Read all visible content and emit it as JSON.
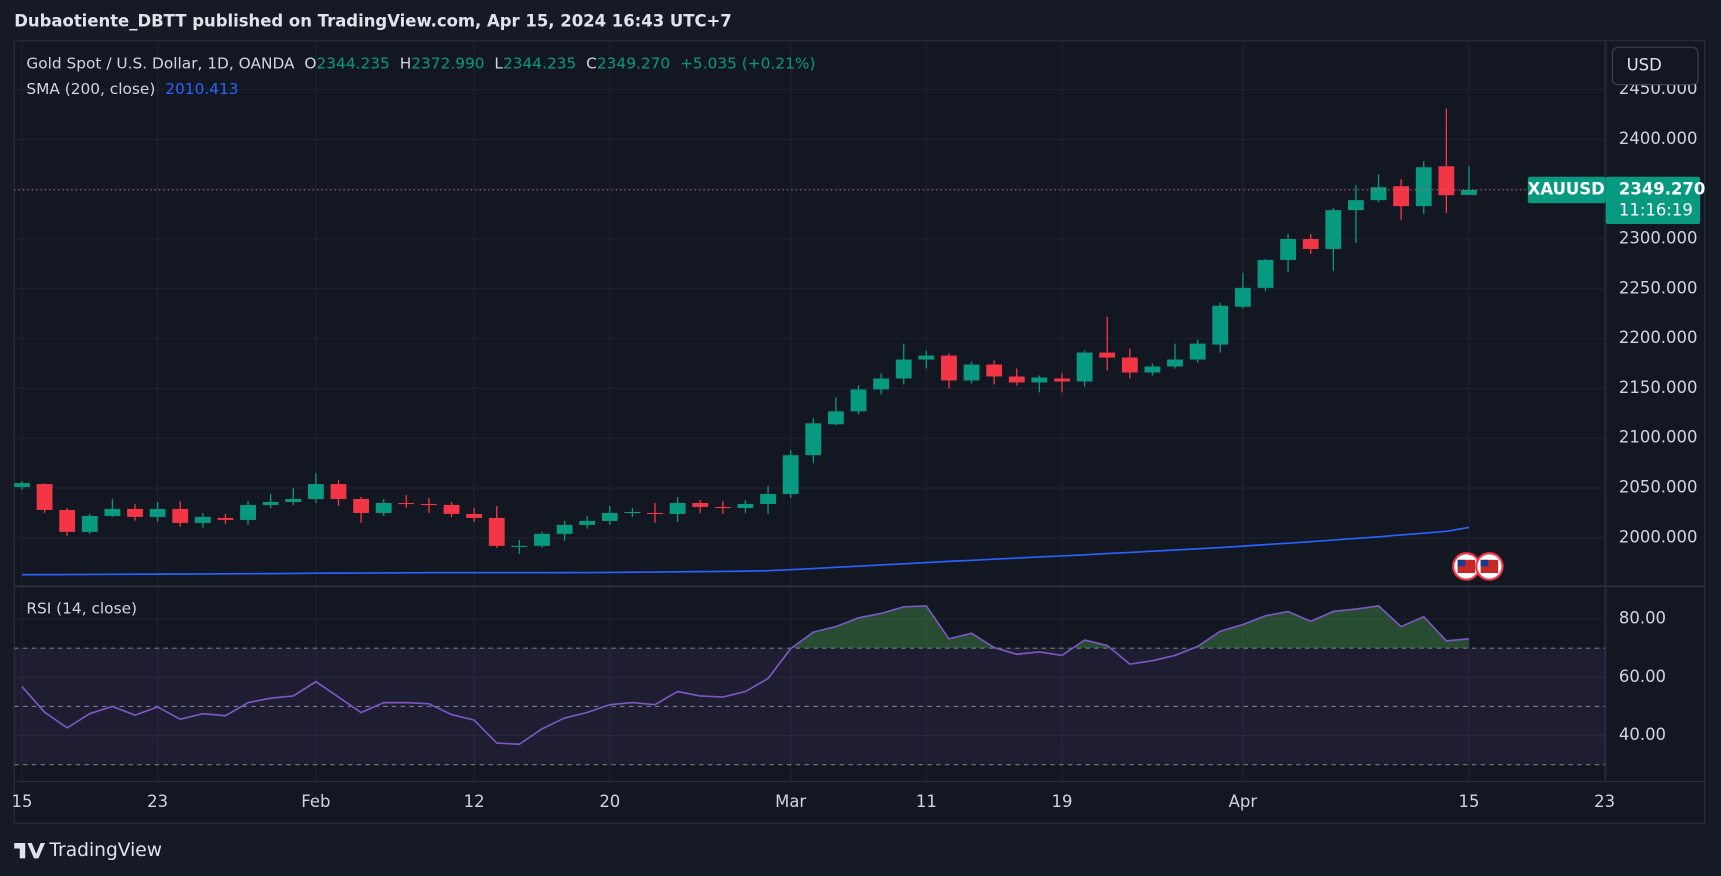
{
  "header": {
    "published": "Dubaotiente_DBTT published on TradingView.com, Apr 15, 2024 16:43 UTC+7"
  },
  "chart_data": [
    {
      "type": "candlestick",
      "title": "Gold Spot / U.S. Dollar, 1D, OANDA",
      "ohlc_legend": [
        {
          "label": "O",
          "value": "2344.235"
        },
        {
          "label": "H",
          "value": "2372.990"
        },
        {
          "label": "L",
          "value": "2344.235"
        },
        {
          "label": "C",
          "value": "2349.270"
        }
      ],
      "change": "+5.035 (+0.21%)",
      "up_color": "#089981",
      "down_color": "#f23645",
      "open": [
        2051,
        2054,
        2028,
        2006,
        2022,
        2029,
        2021,
        2029,
        2015,
        2020,
        2018,
        2033,
        2036,
        2039,
        2054,
        2039,
        2025,
        2035,
        2034,
        2033,
        2024,
        2020,
        1992,
        1992,
        2004,
        2013,
        2017,
        2025,
        2025,
        2024,
        2035,
        2031,
        2030,
        2034,
        2044,
        2083,
        2114,
        2127,
        2149,
        2160,
        2179,
        2183,
        2158,
        2174,
        2162,
        2156,
        2160,
        2157,
        2186,
        2181,
        2166,
        2172,
        2179,
        2194,
        2232,
        2251,
        2279,
        2300,
        2290,
        2329,
        2339,
        2353,
        2333,
        2373,
        2344.235
      ],
      "high": [
        2057,
        2055,
        2030,
        2024,
        2039,
        2034,
        2036,
        2037,
        2025,
        2024,
        2037,
        2044,
        2050,
        2065,
        2058,
        2041,
        2039,
        2043,
        2040,
        2036,
        2030,
        2032,
        1998,
        2006,
        2017,
        2022,
        2032,
        2030,
        2035,
        2041,
        2038,
        2037,
        2038,
        2052,
        2088,
        2120,
        2141,
        2153,
        2165,
        2195,
        2188,
        2185,
        2177,
        2178,
        2170,
        2163,
        2165,
        2188,
        2222,
        2190,
        2175,
        2195,
        2199,
        2236,
        2266,
        2280,
        2305,
        2305,
        2331,
        2354,
        2365,
        2360,
        2378,
        2431,
        2372.99
      ],
      "low": [
        2048,
        2025,
        2002,
        2004,
        2021,
        2017,
        2016,
        2011,
        2010,
        2014,
        2013,
        2030,
        2033,
        2035,
        2032,
        2015,
        2022,
        2030,
        2025,
        2021,
        2016,
        1990,
        1984,
        1990,
        1997,
        2009,
        2013,
        2021,
        2015,
        2016,
        2025,
        2024,
        2025,
        2024,
        2040,
        2075,
        2113,
        2124,
        2144,
        2154,
        2170,
        2150,
        2155,
        2154,
        2153,
        2146,
        2146,
        2152,
        2168,
        2160,
        2163,
        2170,
        2176,
        2186,
        2230,
        2248,
        2267,
        2285,
        2268,
        2296,
        2337,
        2319,
        2325,
        2326,
        2344.235
      ],
      "close": [
        2055,
        2028,
        2006,
        2022,
        2029,
        2021,
        2029,
        2015,
        2021,
        2018,
        2033,
        2036,
        2039,
        2054,
        2039,
        2025,
        2035,
        2034,
        2033,
        2024,
        2020,
        1992,
        1992,
        2004,
        2013,
        2017,
        2025,
        2026,
        2024,
        2035,
        2031,
        2030,
        2034,
        2044,
        2083,
        2115,
        2127,
        2149,
        2160,
        2179,
        2183,
        2158,
        2174,
        2162,
        2156,
        2161,
        2157,
        2186,
        2181,
        2166,
        2172,
        2179,
        2195,
        2233,
        2251,
        2279,
        2300,
        2290,
        2329,
        2339,
        2352,
        2333,
        2372,
        2344,
        2349.27
      ],
      "sma": {
        "name": "SMA (200, close)",
        "color": "#2962ff",
        "values": [
          1963.0,
          1963.1,
          1963.2,
          1963.3,
          1963.4,
          1963.5,
          1963.6,
          1963.7,
          1963.8,
          1963.9,
          1964.0,
          1964.1,
          1964.3,
          1964.5,
          1964.6,
          1964.7,
          1964.8,
          1964.9,
          1965.0,
          1965.0,
          1965.0,
          1965.0,
          1965.0,
          1965.0,
          1965.1,
          1965.2,
          1965.3,
          1965.5,
          1965.7,
          1965.9,
          1966.1,
          1966.3,
          1966.6,
          1967.0,
          1968.0,
          1969.2,
          1970.4,
          1971.6,
          1972.8,
          1974.0,
          1975.2,
          1976.4,
          1977.5,
          1978.6,
          1979.7,
          1980.8,
          1981.9,
          1983.0,
          1984.2,
          1985.4,
          1986.6,
          1987.8,
          1989.0,
          1990.3,
          1991.7,
          1993.2,
          1994.7,
          1996.2,
          1997.8,
          1999.4,
          2001.1,
          2002.9,
          2004.7,
          2006.6,
          2010.413
        ]
      },
      "ylim": [
        1952.6,
        2498
      ],
      "yticks": [
        {
          "value": 2000,
          "label": "2000.000"
        },
        {
          "value": 2050,
          "label": "2050.000"
        },
        {
          "value": 2100,
          "label": "2100.000"
        },
        {
          "value": 2150,
          "label": "2150.000"
        },
        {
          "value": 2200,
          "label": "2200.000"
        },
        {
          "value": 2250,
          "label": "2250.000"
        },
        {
          "value": 2300,
          "label": "2300.000"
        },
        {
          "value": 2350,
          "label": "2350.000"
        },
        {
          "value": 2400,
          "label": "2400.000"
        },
        {
          "value": 2450,
          "label": "2450.000"
        }
      ],
      "xlim": [
        -0.34,
        70.05
      ],
      "xticks": [
        {
          "value": 0,
          "label": "15"
        },
        {
          "value": 6,
          "label": "23"
        },
        {
          "value": 13,
          "label": "Feb"
        },
        {
          "value": 20,
          "label": "12"
        },
        {
          "value": 26,
          "label": "20"
        },
        {
          "value": 34,
          "label": "Mar"
        },
        {
          "value": 40,
          "label": "11"
        },
        {
          "value": 46,
          "label": "19"
        },
        {
          "value": 54,
          "label": "Apr"
        },
        {
          "value": 64,
          "label": "15"
        },
        {
          "value": 70,
          "label": "23"
        }
      ],
      "grid": true,
      "symbol": "XAUUSD",
      "last_price_label": "2349.270",
      "countdown": "11:16:19",
      "currency": "USD"
    },
    {
      "type": "line",
      "title": "RSI (14, close)",
      "color": "#7e57c2",
      "values": [
        56.8,
        48.0,
        42.6,
        47.5,
        50.0,
        47.0,
        49.8,
        45.6,
        47.5,
        46.8,
        51.3,
        52.8,
        53.6,
        58.5,
        53.2,
        47.9,
        51.3,
        51.3,
        50.9,
        47.2,
        45.3,
        37.4,
        37.0,
        42.3,
        46.0,
        47.9,
        50.6,
        51.3,
        50.6,
        55.1,
        53.6,
        53.2,
        55.1,
        59.6,
        69.8,
        75.5,
        77.4,
        80.4,
        81.9,
        84.2,
        84.5,
        73.2,
        75.1,
        70.2,
        67.9,
        68.7,
        67.5,
        72.8,
        70.9,
        64.5,
        65.7,
        67.5,
        70.6,
        75.8,
        78.1,
        81.1,
        82.6,
        79.2,
        82.6,
        83.4,
        84.5,
        77.4,
        80.8,
        72.5,
        73.2
      ],
      "ylim": [
        24.2,
        90.9
      ],
      "yticks": [
        {
          "value": 40,
          "label": "40.00"
        },
        {
          "value": 60,
          "label": "60.00"
        },
        {
          "value": 80,
          "label": "80.00"
        }
      ],
      "levels": [
        70,
        50,
        30
      ],
      "xlim": [
        -0.34,
        70.05
      ],
      "grid": true
    }
  ],
  "footer": {
    "brand": "TradingView"
  }
}
